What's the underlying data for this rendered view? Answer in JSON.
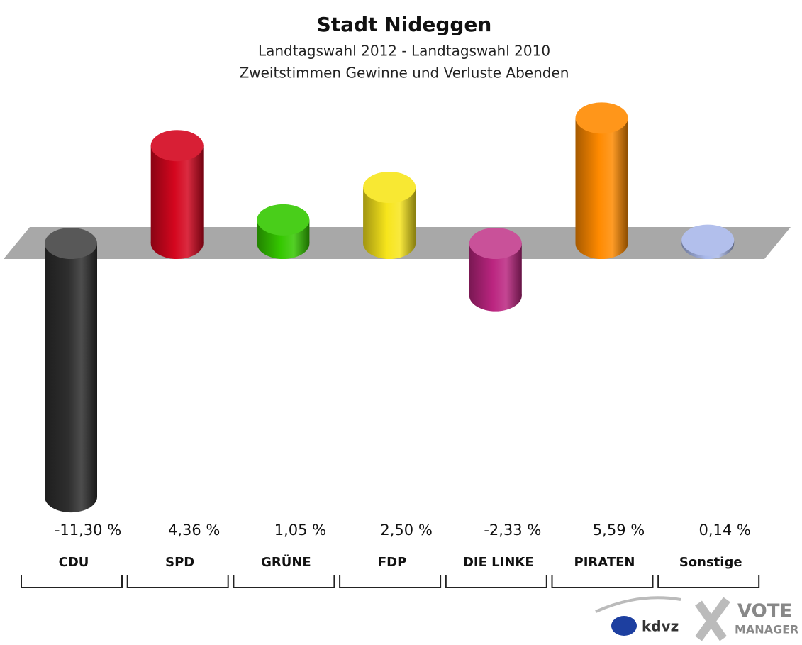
{
  "chart_data": {
    "type": "bar",
    "title": "Stadt Nideggen",
    "subtitle": [
      "Landtagswahl 2012 - Landtagswahl 2010",
      "Zweitstimmen Gewinne und Verluste Abenden"
    ],
    "categories": [
      "CDU",
      "SPD",
      "GRÜNE",
      "FDP",
      "DIE LINKE",
      "PIRATEN",
      "Sonstige"
    ],
    "values": [
      -11.3,
      4.36,
      1.05,
      2.5,
      -2.33,
      5.59,
      0.14
    ],
    "value_labels": [
      "-11,30 %",
      "4,36 %",
      "1,05 %",
      "2,50 %",
      "-2,33 %",
      "5,59 %",
      "0,14 %"
    ],
    "colors": [
      "#2e2e2e",
      "#d4061e",
      "#35c800",
      "#f7e51c",
      "#bb2580",
      "#ff8a00",
      "#a9b8ea"
    ],
    "logos": [
      "kdvz",
      "VOTE",
      "MANAGER"
    ]
  }
}
